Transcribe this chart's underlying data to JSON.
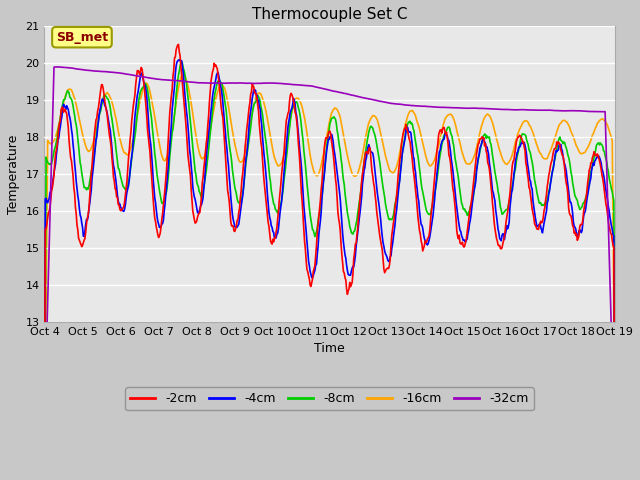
{
  "title": "Thermocouple Set C",
  "xlabel": "Time",
  "ylabel": "Temperature",
  "ylim": [
    13.0,
    21.0
  ],
  "yticks": [
    13.0,
    14.0,
    15.0,
    16.0,
    17.0,
    18.0,
    19.0,
    20.0,
    21.0
  ],
  "xtick_labels": [
    "Oct 4",
    "Oct 5",
    "Oct 6",
    "Oct 7",
    "Oct 8",
    "Oct 9",
    "Oct 10",
    "Oct 11",
    "Oct 12",
    "Oct 13",
    "Oct 14",
    "Oct 15",
    "Oct 16",
    "Oct 17",
    "Oct 18",
    "Oct 19"
  ],
  "annotation": "SB_met",
  "annotation_color": "#8B0000",
  "annotation_bg": "#FFFF88",
  "annotation_edge": "#999900",
  "colors": {
    "-2cm": "#FF0000",
    "-4cm": "#0000FF",
    "-8cm": "#00CC00",
    "-16cm": "#FFA500",
    "-32cm": "#9900BB"
  },
  "legend_labels": [
    "-2cm",
    "-4cm",
    "-8cm",
    "-16cm",
    "-32cm"
  ],
  "fig_bg": "#C8C8C8",
  "plot_bg": "#E8E8E8",
  "grid_color": "#FFFFFF"
}
